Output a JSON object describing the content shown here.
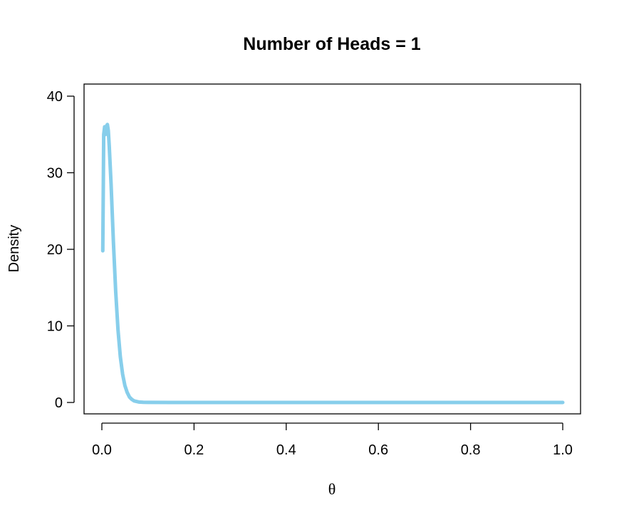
{
  "chart_data": {
    "type": "line",
    "title": "Number of Heads = 1",
    "xlabel": "θ",
    "ylabel": "Density",
    "xlim": [
      0,
      1
    ],
    "ylim": [
      0,
      40
    ],
    "xticks": [
      "0.0",
      "0.2",
      "0.4",
      "0.6",
      "0.8",
      "1.0"
    ],
    "yticks": [
      "0",
      "10",
      "20",
      "30",
      "40"
    ],
    "grid": false,
    "line_color": "#87CEEB",
    "series": [
      {
        "x": [
          0.002,
          0.004,
          0.006,
          0.008,
          0.01,
          0.012,
          0.014,
          0.016,
          0.018,
          0.02,
          0.025,
          0.03,
          0.035,
          0.04,
          0.045,
          0.05,
          0.055,
          0.06,
          0.065,
          0.07,
          0.08,
          0.09,
          0.1,
          0.15,
          0.2,
          0.3,
          0.4,
          0.5,
          0.6,
          0.7,
          0.8,
          0.9,
          1.0
        ],
        "y": [
          19.8,
          35.0,
          36.0,
          35.0,
          36.1,
          36.3,
          35.5,
          33.5,
          31.0,
          28.5,
          21.0,
          14.5,
          9.5,
          6.0,
          3.7,
          2.2,
          1.3,
          0.7,
          0.4,
          0.2,
          0.06,
          0.02,
          0.01,
          0,
          0,
          0,
          0,
          0,
          0,
          0,
          0,
          0,
          0
        ]
      }
    ]
  }
}
